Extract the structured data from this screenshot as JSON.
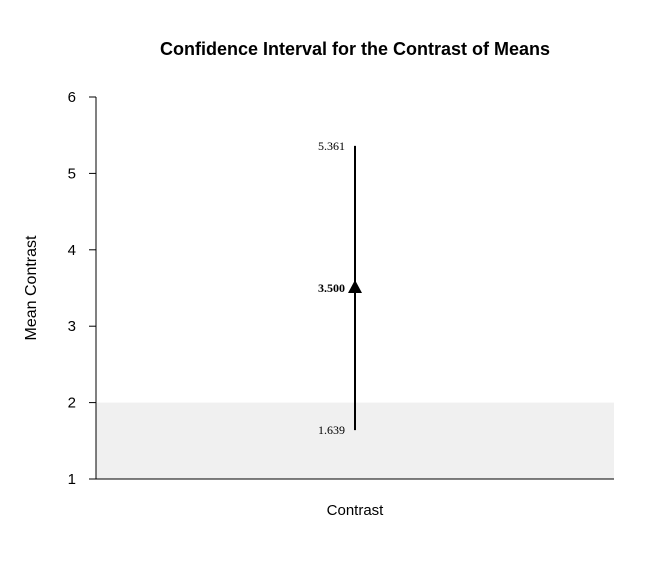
{
  "chart_data": {
    "type": "interval",
    "title": "Confidence Interval for the Contrast of Means",
    "ylabel": "Mean Contrast",
    "categories": [
      "Contrast"
    ],
    "ylim": [
      1,
      6
    ],
    "yticks": [
      1,
      2,
      3,
      4,
      5,
      6
    ],
    "shaded_region": {
      "from": 1,
      "to": 2,
      "color": "#f0f0f0"
    },
    "series": [
      {
        "category": "Contrast",
        "estimate": 3.5,
        "lower": 1.639,
        "upper": 5.361,
        "estimate_label": "3.500",
        "lower_label": "1.639",
        "upper_label": "5.361"
      }
    ],
    "grid": false,
    "colors": {
      "interval": "#000000",
      "shade": "#f0f0f0"
    }
  }
}
